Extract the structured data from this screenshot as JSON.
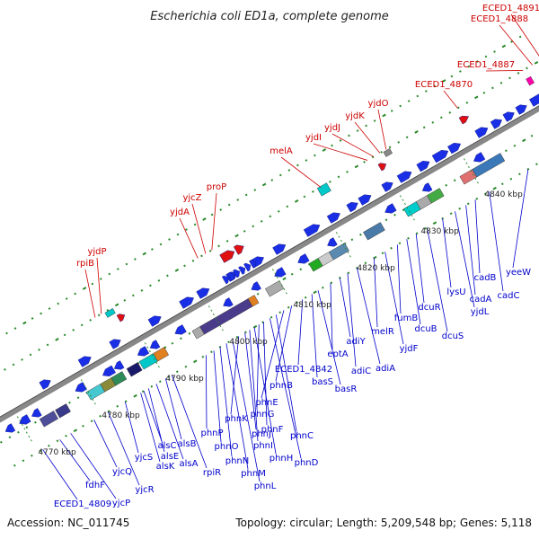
{
  "title": "Escherichia coli ED1a, complete genome",
  "accession": "Accession: NC_011745",
  "summary": "Topology: circular; Length: 5,209,548 bp; Genes: 5,118",
  "colors": {
    "blue_arrow": "#1a2ee6",
    "red_arrow": "#e01010",
    "red_label": "#cc0000",
    "blue_label": "#0000cc",
    "backbone": "#888888",
    "dots": "#2a8a2a"
  },
  "ticks": [
    {
      "label": "4770 kbp"
    },
    {
      "label": "4780 kbp"
    },
    {
      "label": "4790 kbp"
    },
    {
      "label": "4800 kbp"
    },
    {
      "label": "4810 kbp"
    },
    {
      "label": "4820 kbp"
    },
    {
      "label": "4830 kbp"
    },
    {
      "label": "4840 kbp"
    }
  ],
  "top_labels": [
    {
      "text": "rpiB"
    },
    {
      "text": "yjdP"
    },
    {
      "text": "yjdA"
    },
    {
      "text": "yjcZ"
    },
    {
      "text": "proP"
    },
    {
      "text": "melA"
    },
    {
      "text": "yjdI"
    },
    {
      "text": "yjdJ"
    },
    {
      "text": "yjdK"
    },
    {
      "text": "yjdO"
    },
    {
      "text": "ECED1_4870"
    },
    {
      "text": "ECED1_4887"
    },
    {
      "text": "ECED1_4888"
    },
    {
      "text": "ECED1_4891"
    }
  ],
  "bottom_labels": [
    {
      "text": "ECED1_4809"
    },
    {
      "text": "fdhF"
    },
    {
      "text": "yjcP"
    },
    {
      "text": "yjcQ"
    },
    {
      "text": "yjcR"
    },
    {
      "text": "yjcS"
    },
    {
      "text": "alsK"
    },
    {
      "text": "alsC"
    },
    {
      "text": "alsE"
    },
    {
      "text": "alsA"
    },
    {
      "text": "alsB"
    },
    {
      "text": "rpiR"
    },
    {
      "text": "phnP"
    },
    {
      "text": "phnO"
    },
    {
      "text": "phnN"
    },
    {
      "text": "phnM"
    },
    {
      "text": "phnL"
    },
    {
      "text": "phnK"
    },
    {
      "text": "phnJ"
    },
    {
      "text": "phnI"
    },
    {
      "text": "phnH"
    },
    {
      "text": "phnG"
    },
    {
      "text": "phnF"
    },
    {
      "text": "phnD"
    },
    {
      "text": "phnC"
    },
    {
      "text": "phnE"
    },
    {
      "text": "phnB"
    },
    {
      "text": "ECED1_4842"
    },
    {
      "text": "basS"
    },
    {
      "text": "basR"
    },
    {
      "text": "eptA"
    },
    {
      "text": "adiY"
    },
    {
      "text": "adiC"
    },
    {
      "text": "adiA"
    },
    {
      "text": "melR"
    },
    {
      "text": "yjdF"
    },
    {
      "text": "fumB"
    },
    {
      "text": "dcuB"
    },
    {
      "text": "dcuR"
    },
    {
      "text": "dcuS"
    },
    {
      "text": "lysU"
    },
    {
      "text": "yjdL"
    },
    {
      "text": "cadA"
    },
    {
      "text": "cadB"
    },
    {
      "text": "cadC"
    },
    {
      "text": "yeeW"
    }
  ]
}
